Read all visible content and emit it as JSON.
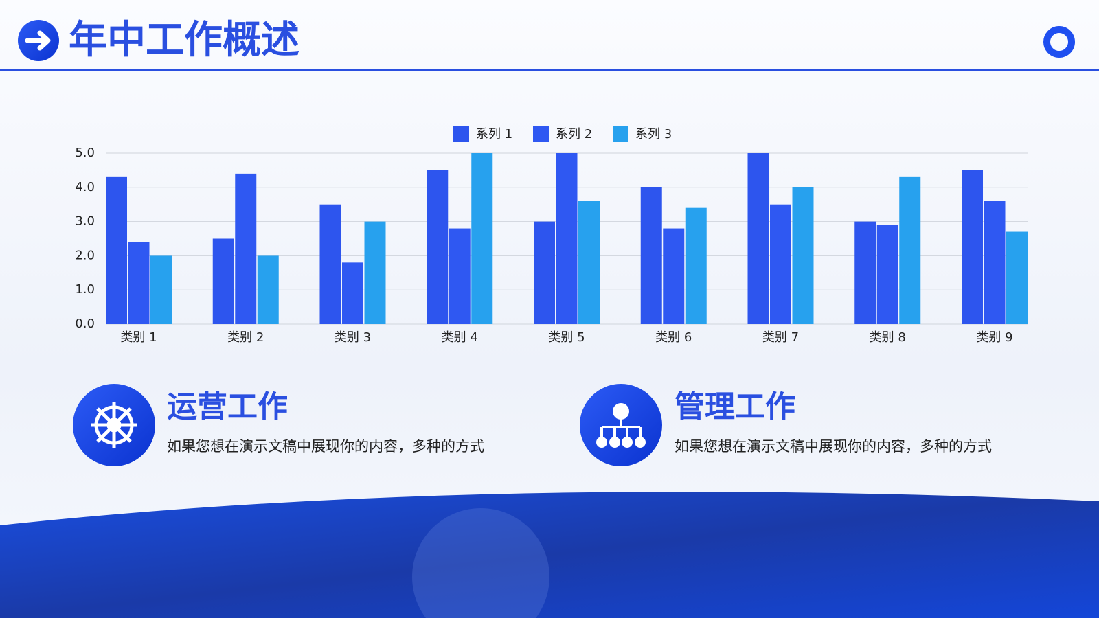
{
  "header": {
    "title": "年中工作概述"
  },
  "chart_data": {
    "type": "bar",
    "categories": [
      "类别 1",
      "类别 2",
      "类别 3",
      "类别 4",
      "类别 5",
      "类别 6",
      "类别 7",
      "类别 8",
      "类别 9"
    ],
    "series": [
      {
        "name": "系列 1",
        "color": "#2d55ee",
        "values": [
          4.3,
          2.5,
          3.5,
          4.5,
          3.0,
          4.0,
          5.0,
          3.0,
          4.5
        ]
      },
      {
        "name": "系列 2",
        "color": "#2f58f2",
        "values": [
          2.4,
          4.4,
          1.8,
          2.8,
          5.0,
          2.8,
          3.5,
          2.9,
          3.6
        ]
      },
      {
        "name": "系列 3",
        "color": "#27a1ee",
        "values": [
          2.0,
          2.0,
          3.0,
          5.0,
          3.6,
          3.4,
          4.0,
          4.3,
          2.7
        ]
      }
    ],
    "ylim": [
      0,
      5
    ],
    "yticks": [
      {
        "value": 0,
        "label": "0.0"
      },
      {
        "value": 1,
        "label": "1.0"
      },
      {
        "value": 2,
        "label": "2.0"
      },
      {
        "value": 3,
        "label": "3.0"
      },
      {
        "value": 4,
        "label": "4.0"
      },
      {
        "value": 5,
        "label": "5.0"
      }
    ],
    "grid": true,
    "legend": "top"
  },
  "sections": [
    {
      "title": "运营工作",
      "text": "如果您想在演示文稿中展现你的内容，多种的方式"
    },
    {
      "title": "管理工作",
      "text": "如果您想在演示文稿中展现你的内容，多种的方式"
    }
  ]
}
